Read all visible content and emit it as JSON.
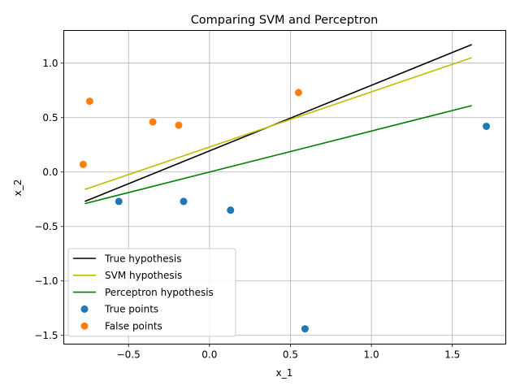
{
  "chart_data": {
    "type": "scatter",
    "title": "Comparing SVM and Perceptron",
    "xlabel": "x_1",
    "ylabel": "x_2",
    "xlim": [
      -0.9,
      1.83
    ],
    "ylim": [
      -1.58,
      1.3
    ],
    "xticks": [
      -0.5,
      0.0,
      0.5,
      1.0,
      1.5
    ],
    "xtick_labels": [
      "−0.5",
      "0.0",
      "0.5",
      "1.0",
      "1.5"
    ],
    "yticks": [
      -1.5,
      -1.0,
      -0.5,
      0.0,
      0.5,
      1.0
    ],
    "ytick_labels": [
      "−1.5",
      "−1.0",
      "−0.5",
      "0.0",
      "0.5",
      "1.0"
    ],
    "grid": true,
    "legend_position": "lower-left",
    "lines": [
      {
        "name": "True hypothesis",
        "color": "#000000",
        "x": [
          -0.77,
          1.62
        ],
        "y": [
          -0.27,
          1.17
        ]
      },
      {
        "name": "SVM hypothesis",
        "color": "#bfbf00",
        "x": [
          -0.77,
          1.62
        ],
        "y": [
          -0.16,
          1.05
        ]
      },
      {
        "name": "Perceptron hypothesis",
        "color": "#008000",
        "x": [
          -0.77,
          1.62
        ],
        "y": [
          -0.29,
          0.61
        ]
      }
    ],
    "scatter": [
      {
        "name": "True points",
        "color": "#1f77b4",
        "points": [
          [
            -0.56,
            -0.27
          ],
          [
            -0.16,
            -0.27
          ],
          [
            0.13,
            -0.35
          ],
          [
            0.59,
            -1.44
          ],
          [
            1.71,
            0.42
          ]
        ]
      },
      {
        "name": "False points",
        "color": "#ff7f0e",
        "points": [
          [
            -0.78,
            0.07
          ],
          [
            -0.74,
            0.65
          ],
          [
            -0.35,
            0.46
          ],
          [
            -0.19,
            0.43
          ],
          [
            0.55,
            0.73
          ]
        ]
      }
    ]
  }
}
